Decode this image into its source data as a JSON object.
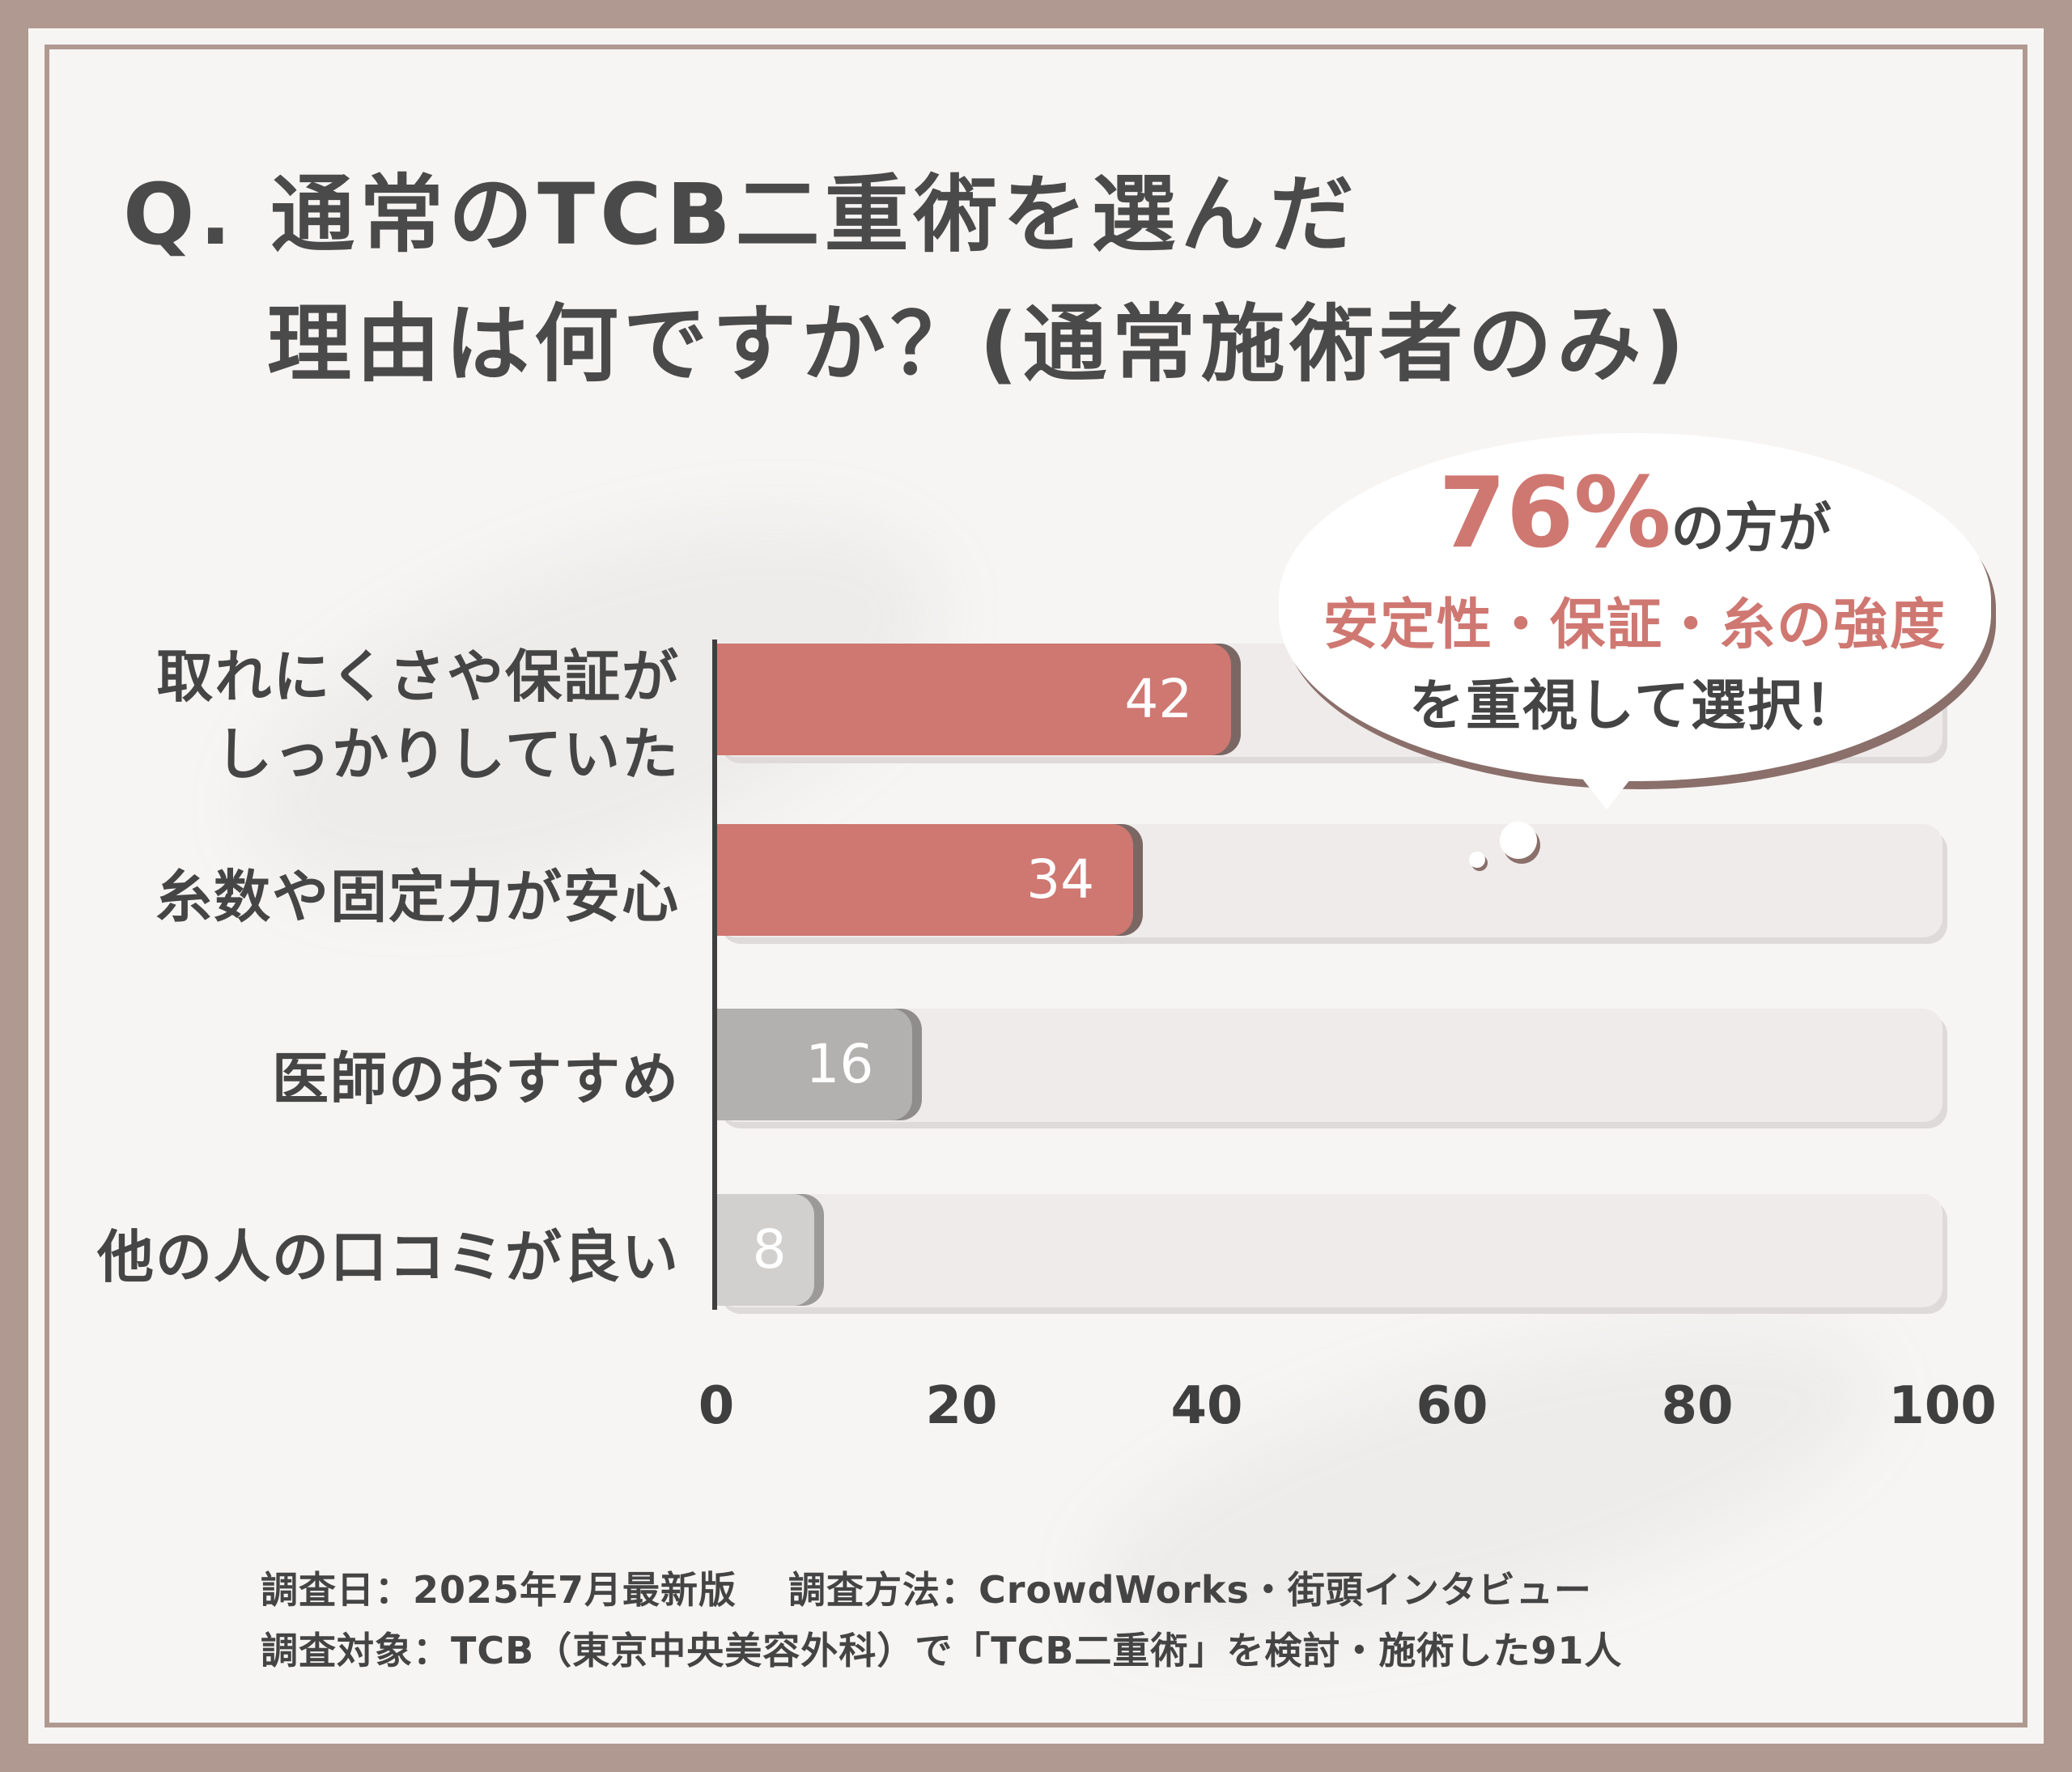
{
  "title_line1": "Q. 通常のTCB二重術を選んだ",
  "title_line2": "理由は何ですか？(通常施術者のみ)",
  "callout": {
    "percent": "76%",
    "line1_suffix": "の方が",
    "line2": "安定性・保証・糸の強度",
    "line3": "を重視して選択！"
  },
  "chart_data": {
    "type": "bar",
    "orientation": "horizontal",
    "categories": [
      "取れにくさや保証がしっかりしていた",
      "糸数や固定力が安心",
      "医師のおすすめ",
      "他の人の口コミが良い"
    ],
    "category_lines": [
      [
        "取れにくさや保証が",
        "しっかりしていた"
      ],
      [
        "糸数や固定力が安心"
      ],
      [
        "医師のおすすめ"
      ],
      [
        "他の人の口コミが良い"
      ]
    ],
    "values": [
      42,
      34,
      16,
      8
    ],
    "value_labels": [
      "42",
      "34",
      "16",
      "8"
    ],
    "bar_colors": [
      "#cf7771",
      "#cf7771",
      "#b3b1b0",
      "#d1d0cf"
    ],
    "bar_shadow_colors": [
      "#7a6764",
      "#7a6764",
      "#8f8d8c",
      "#9c9a99"
    ],
    "track_color": "#efebea",
    "xlim": [
      0,
      100
    ],
    "ticks": [
      "0",
      "20",
      "40",
      "60",
      "80",
      "100"
    ],
    "tick_values": [
      0,
      20,
      40,
      60,
      80,
      100
    ],
    "grid": false
  },
  "footer": {
    "line1": "調査日：2025年7月最新版　 調査方法：CrowdWorks・街頭インタビュー",
    "line2": "調査対象：TCB（東京中央美容外科）で「TCB二重術」を検討・施術した91人"
  }
}
